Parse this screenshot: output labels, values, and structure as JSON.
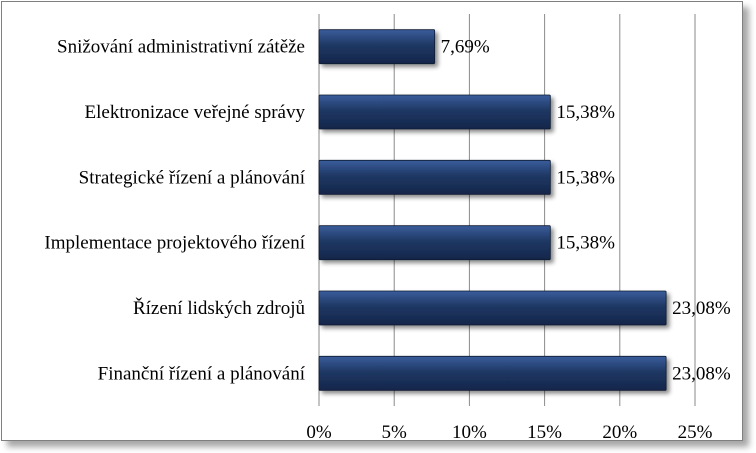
{
  "chart_data": {
    "type": "bar",
    "orientation": "horizontal",
    "title": "",
    "xlabel": "",
    "ylabel": "",
    "categories": [
      "Snižování administrativní zátěže",
      "Elektronizace veřejné správy",
      "Strategické řízení a plánování",
      "Implementace projektového řízení",
      "Řízení lidských zdrojů",
      "Finanční řízení a plánování"
    ],
    "values": [
      7.69,
      15.38,
      15.38,
      15.38,
      23.08,
      23.08
    ],
    "value_labels": [
      "7,69%",
      "15,38%",
      "15,38%",
      "15,38%",
      "23,08%",
      "23,08%"
    ],
    "xlim": [
      0,
      25
    ],
    "ticks": [
      0,
      5,
      10,
      15,
      20,
      25
    ],
    "tick_labels": [
      "0%",
      "5%",
      "10%",
      "15%",
      "20%",
      "25%"
    ],
    "grid": true,
    "legend": "none",
    "colors": {
      "bar": "#1f3864",
      "bar_light": "#3a5d9c",
      "grid": "#8a8a8a"
    }
  }
}
